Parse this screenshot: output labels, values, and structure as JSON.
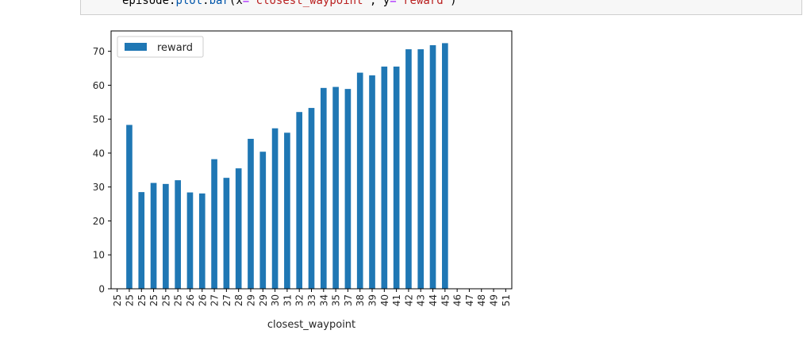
{
  "code": {
    "object": "episode",
    "dot1": ".",
    "method1": "plot",
    "dot2": ".",
    "method2": "bar",
    "open": "(",
    "kw_x": "x",
    "eq1": "=",
    "val_x": "'closest_waypoint'",
    "comma": ", ",
    "kw_y": "y",
    "eq2": "=",
    "val_y": "'reward'",
    "close": ")"
  },
  "chart_data": {
    "type": "bar",
    "categories": [
      "25",
      "25",
      "25",
      "25",
      "25",
      "25",
      "26",
      "26",
      "27",
      "27",
      "28",
      "29",
      "29",
      "30",
      "31",
      "32",
      "33",
      "34",
      "35",
      "37",
      "38",
      "39",
      "40",
      "41",
      "42",
      "43",
      "44",
      "45",
      "46",
      "47",
      "48",
      "49",
      "51"
    ],
    "series": [
      {
        "name": "reward",
        "values": [
          0,
          48.3,
          28.5,
          31.2,
          30.9,
          32.0,
          28.4,
          28.1,
          38.2,
          32.7,
          35.5,
          44.2,
          40.4,
          47.3,
          46.0,
          52.1,
          53.3,
          59.2,
          59.5,
          58.9,
          63.7,
          62.9,
          65.5,
          65.5,
          70.6,
          70.6,
          71.8,
          72.4,
          0,
          0,
          0,
          0,
          0
        ]
      }
    ],
    "xlabel": "closest_waypoint",
    "ylabel": "",
    "ylim": [
      0,
      76
    ],
    "yticks": [
      0,
      10,
      20,
      30,
      40,
      50,
      60,
      70
    ],
    "legend": "top-left",
    "grid": false,
    "bar_color": "#1f77b4"
  }
}
